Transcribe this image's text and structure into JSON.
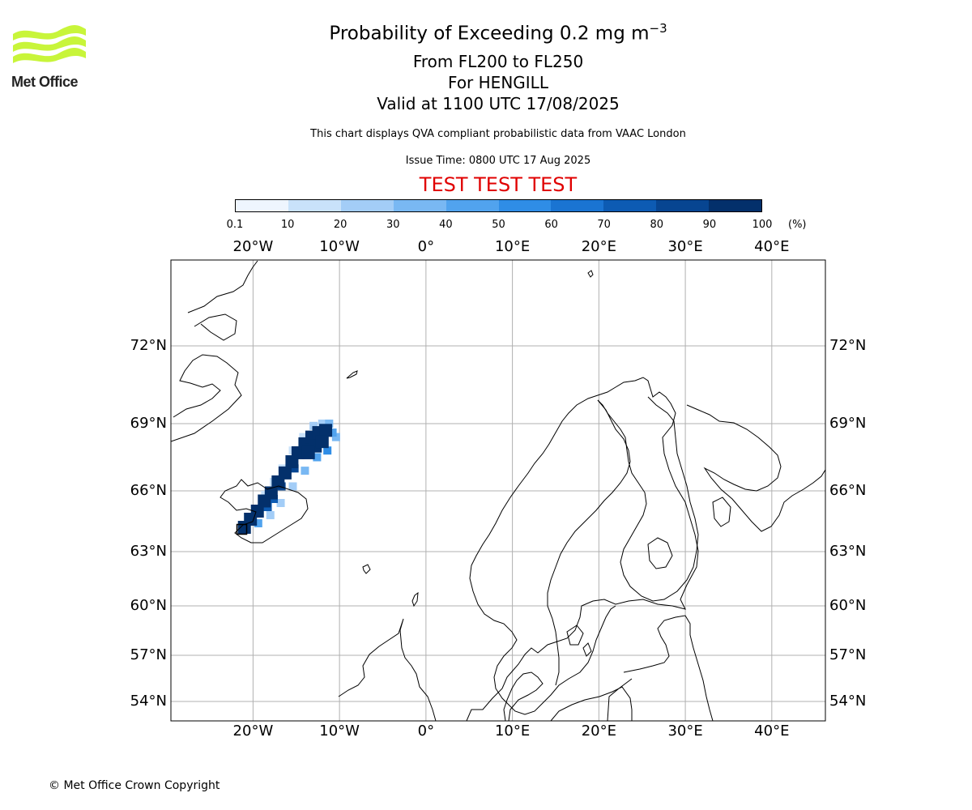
{
  "logo": {
    "text": "Met Office",
    "color": "#c8f53a"
  },
  "header": {
    "title_prefix": "Probability of Exceeding 0.2 mg m",
    "title_exponent": "−3",
    "levels": "From FL200 to FL250",
    "volcano": "For HENGILL",
    "valid": "Valid at 1100 UTC 17/08/2025",
    "subtitle": "This chart displays QVA compliant probabilistic data from VAAC London",
    "issue_time": "Issue Time: 0800 UTC 17 Aug 2025",
    "test_banner": "TEST TEST TEST",
    "test_banner_color": "#e00000"
  },
  "colorbar": {
    "ticks": [
      "0.1",
      "10",
      "20",
      "30",
      "40",
      "50",
      "60",
      "70",
      "80",
      "90",
      "100"
    ],
    "unit": "(%)",
    "colors": [
      "#eef5fe",
      "#c9e2fa",
      "#a3cdf7",
      "#79b8f3",
      "#51a3ee",
      "#2f8de6",
      "#1a74d2",
      "#0d5bb3",
      "#074591",
      "#03306b"
    ]
  },
  "map": {
    "lon_range": [
      -29.5,
      46.2
    ],
    "lon_ticks": [
      "20°W",
      "10°W",
      "0°",
      "10°E",
      "20°E",
      "30°E",
      "40°E"
    ],
    "lon_tick_values": [
      -20,
      -10,
      0,
      10,
      20,
      30,
      40
    ],
    "lat_ticks": [
      "72°N",
      "69°N",
      "66°N",
      "63°N",
      "60°N",
      "57°N",
      "54°N"
    ],
    "lat_tick_values": [
      72,
      69,
      66,
      63,
      60,
      57,
      54
    ],
    "volcano": {
      "name": "HENGILL",
      "lat": 64.1,
      "lon": -21.3
    },
    "plume": [
      {
        "lon": -21.0,
        "lat": 64.2,
        "p": 95
      },
      {
        "lon": -20.3,
        "lat": 64.6,
        "p": 95
      },
      {
        "lon": -19.5,
        "lat": 65.0,
        "p": 95
      },
      {
        "lon": -18.7,
        "lat": 65.5,
        "p": 95
      },
      {
        "lon": -17.9,
        "lat": 65.9,
        "p": 95
      },
      {
        "lon": -17.1,
        "lat": 66.4,
        "p": 95
      },
      {
        "lon": -16.3,
        "lat": 66.8,
        "p": 95
      },
      {
        "lon": -15.5,
        "lat": 67.3,
        "p": 95
      },
      {
        "lon": -14.8,
        "lat": 67.7,
        "p": 95
      },
      {
        "lon": -14.0,
        "lat": 68.1,
        "p": 95
      },
      {
        "lon": -13.2,
        "lat": 68.4,
        "p": 95
      },
      {
        "lon": -12.4,
        "lat": 68.6,
        "p": 95
      },
      {
        "lon": -11.6,
        "lat": 68.7,
        "p": 95
      },
      {
        "lon": -12.8,
        "lat": 68.0,
        "p": 95
      },
      {
        "lon": -12.0,
        "lat": 68.2,
        "p": 95
      },
      {
        "lon": -13.6,
        "lat": 67.7,
        "p": 95
      },
      {
        "lon": -16.7,
        "lat": 66.2,
        "p": 80
      },
      {
        "lon": -17.6,
        "lat": 65.6,
        "p": 75
      },
      {
        "lon": -18.3,
        "lat": 65.2,
        "p": 70
      },
      {
        "lon": -15.2,
        "lat": 67.0,
        "p": 80
      },
      {
        "lon": -10.8,
        "lat": 68.6,
        "p": 45
      },
      {
        "lon": -10.4,
        "lat": 68.4,
        "p": 30
      },
      {
        "lon": -11.2,
        "lat": 69.0,
        "p": 35
      },
      {
        "lon": -12.0,
        "lat": 69.0,
        "p": 25
      },
      {
        "lon": -13.0,
        "lat": 68.9,
        "p": 20
      },
      {
        "lon": -14.2,
        "lat": 68.4,
        "p": 15
      },
      {
        "lon": -15.4,
        "lat": 67.8,
        "p": 15
      },
      {
        "lon": -16.6,
        "lat": 67.0,
        "p": 12
      },
      {
        "lon": -17.6,
        "lat": 66.4,
        "p": 12
      },
      {
        "lon": -18.6,
        "lat": 65.8,
        "p": 15
      },
      {
        "lon": -11.4,
        "lat": 67.8,
        "p": 55
      },
      {
        "lon": -12.6,
        "lat": 67.5,
        "p": 45
      },
      {
        "lon": -14.0,
        "lat": 66.9,
        "p": 35
      },
      {
        "lon": -15.4,
        "lat": 66.2,
        "p": 25
      },
      {
        "lon": -16.8,
        "lat": 65.4,
        "p": 20
      },
      {
        "lon": -18.0,
        "lat": 64.8,
        "p": 25
      },
      {
        "lon": -19.4,
        "lat": 64.4,
        "p": 45
      }
    ]
  },
  "footer": {
    "copyright": "© Met Office Crown Copyright"
  }
}
